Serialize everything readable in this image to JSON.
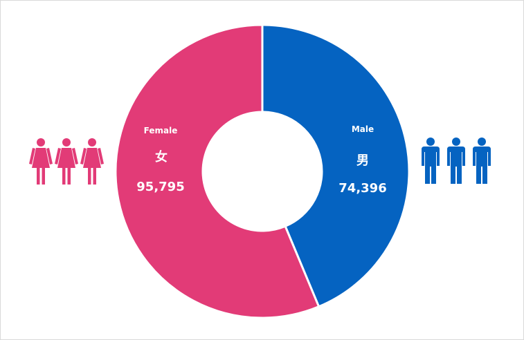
{
  "chart_data": {
    "type": "pie",
    "variant": "donut",
    "categories": [
      "Male",
      "Female"
    ],
    "values": [
      74396,
      95795
    ],
    "value_labels": [
      "74,396",
      "95,795"
    ],
    "category_chars": [
      "男",
      "女"
    ],
    "colors": [
      "#0563c1",
      "#e23b77"
    ],
    "icon_colors": {
      "female": "#e23b77",
      "male": "#0563c1"
    },
    "icons": {
      "female": "female-person-icon",
      "male": "male-person-icon"
    },
    "grid": false,
    "legend": "none"
  }
}
